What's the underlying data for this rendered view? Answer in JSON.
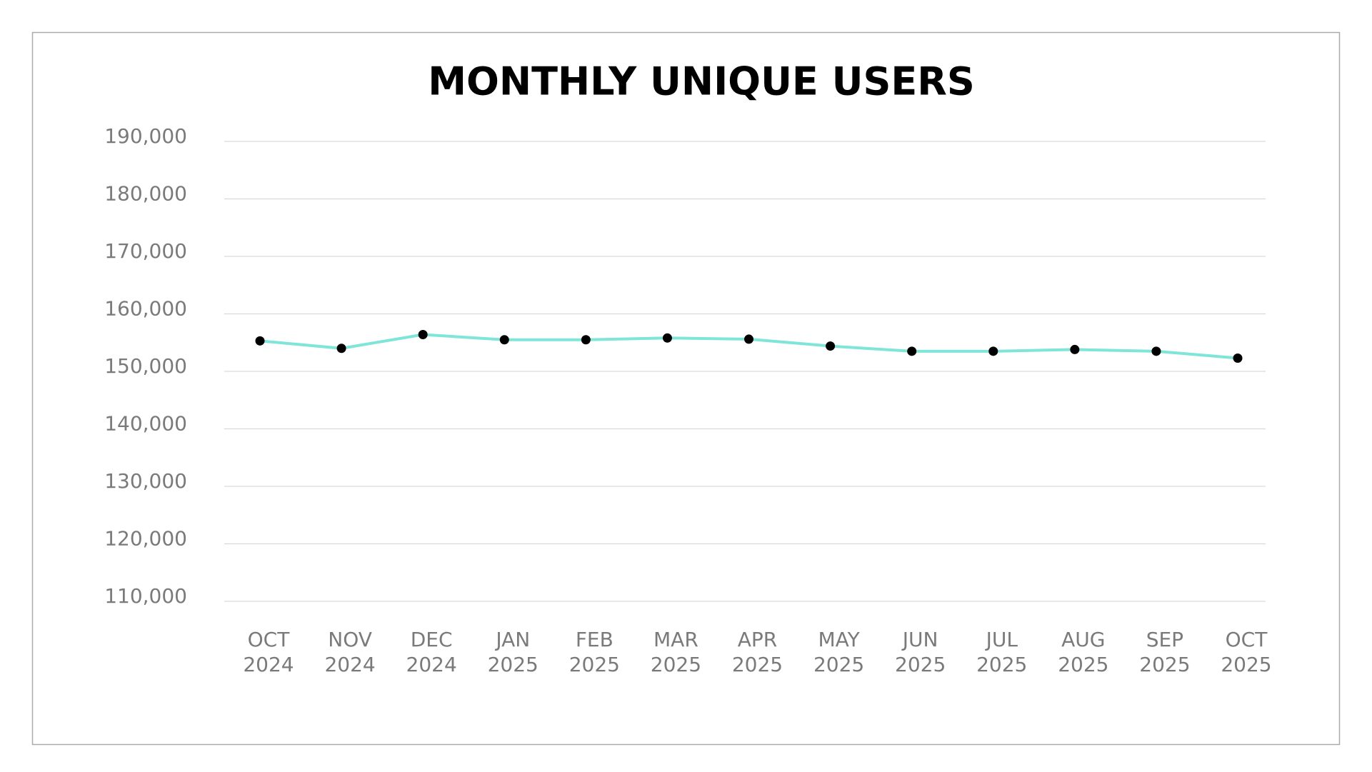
{
  "chart_data": {
    "type": "line",
    "title": "MONTHLY UNIQUE USERS",
    "categories": [
      "OCT 2024",
      "NOV 2024",
      "DEC 2024",
      "JAN 2025",
      "FEB 2025",
      "MAR 2025",
      "APR 2025",
      "MAY 2025",
      "JUN 2025",
      "JUL 2025",
      "AUG 2025",
      "SEP 2025",
      "OCT 2025"
    ],
    "series": [
      {
        "name": "Monthly Unique Users",
        "color": "#7ee5d8",
        "marker_color": "#000000",
        "values": [
          155300,
          154000,
          156400,
          155500,
          155500,
          155800,
          155600,
          154400,
          153500,
          153500,
          153800,
          153500,
          152300
        ]
      }
    ],
    "ylim": [
      110000,
      190000
    ],
    "yticks": [
      {
        "value": 110000,
        "label": "110,000"
      },
      {
        "value": 120000,
        "label": "120,000"
      },
      {
        "value": 130000,
        "label": "130,000"
      },
      {
        "value": 140000,
        "label": "140,000"
      },
      {
        "value": 150000,
        "label": "150,000"
      },
      {
        "value": 160000,
        "label": "160,000"
      },
      {
        "value": 170000,
        "label": "170,000"
      },
      {
        "value": 180000,
        "label": "180,000"
      },
      {
        "value": 190000,
        "label": "190,000"
      }
    ],
    "grid": true
  }
}
